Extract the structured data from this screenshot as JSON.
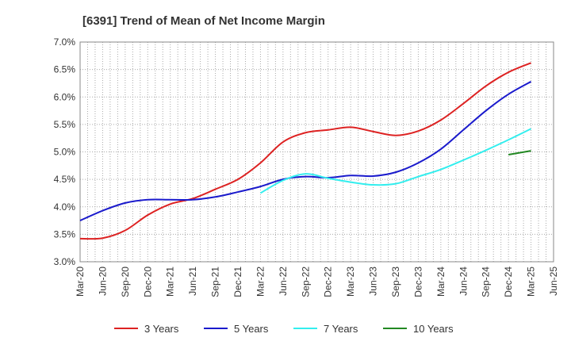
{
  "chart_data": {
    "type": "line",
    "title": "[6391]  Trend of Mean of Net Income Margin",
    "xlabel": "",
    "ylabel": "",
    "ylim": [
      3.0,
      7.0
    ],
    "y_ticks": [
      "3.0%",
      "3.5%",
      "4.0%",
      "4.5%",
      "5.0%",
      "5.5%",
      "6.0%",
      "6.5%",
      "7.0%"
    ],
    "x_ticks": [
      "Mar-20",
      "Jun-20",
      "Sep-20",
      "Dec-20",
      "Mar-21",
      "Jun-21",
      "Sep-21",
      "Dec-21",
      "Mar-22",
      "Jun-22",
      "Sep-22",
      "Dec-22",
      "Mar-23",
      "Jun-23",
      "Sep-23",
      "Dec-23",
      "Mar-24",
      "Jun-24",
      "Sep-24",
      "Dec-24",
      "Mar-25",
      "Jun-25"
    ],
    "grid": "dotted",
    "legend_position": "bottom",
    "series": [
      {
        "name": "3 Years",
        "color": "#dd2222",
        "start": "Mar-20",
        "values": [
          3.42,
          3.43,
          3.57,
          3.85,
          4.05,
          4.15,
          4.32,
          4.5,
          4.8,
          5.18,
          5.35,
          5.4,
          5.45,
          5.37,
          5.3,
          5.38,
          5.58,
          5.88,
          6.2,
          6.45,
          6.62
        ]
      },
      {
        "name": "5 Years",
        "color": "#1a1acc",
        "start": "Mar-20",
        "values": [
          3.75,
          3.93,
          4.07,
          4.13,
          4.13,
          4.13,
          4.18,
          4.27,
          4.37,
          4.5,
          4.55,
          4.53,
          4.57,
          4.56,
          4.63,
          4.8,
          5.05,
          5.4,
          5.75,
          6.05,
          6.28
        ]
      },
      {
        "name": "7 Years",
        "color": "#33eeee",
        "start": "Mar-22",
        "values": [
          4.25,
          4.48,
          4.6,
          4.52,
          4.45,
          4.4,
          4.42,
          4.55,
          4.68,
          4.85,
          5.03,
          5.22,
          5.42
        ]
      },
      {
        "name": "10 Years",
        "color": "#228822",
        "start": "Dec-24",
        "values": [
          4.95,
          5.02
        ]
      }
    ]
  }
}
